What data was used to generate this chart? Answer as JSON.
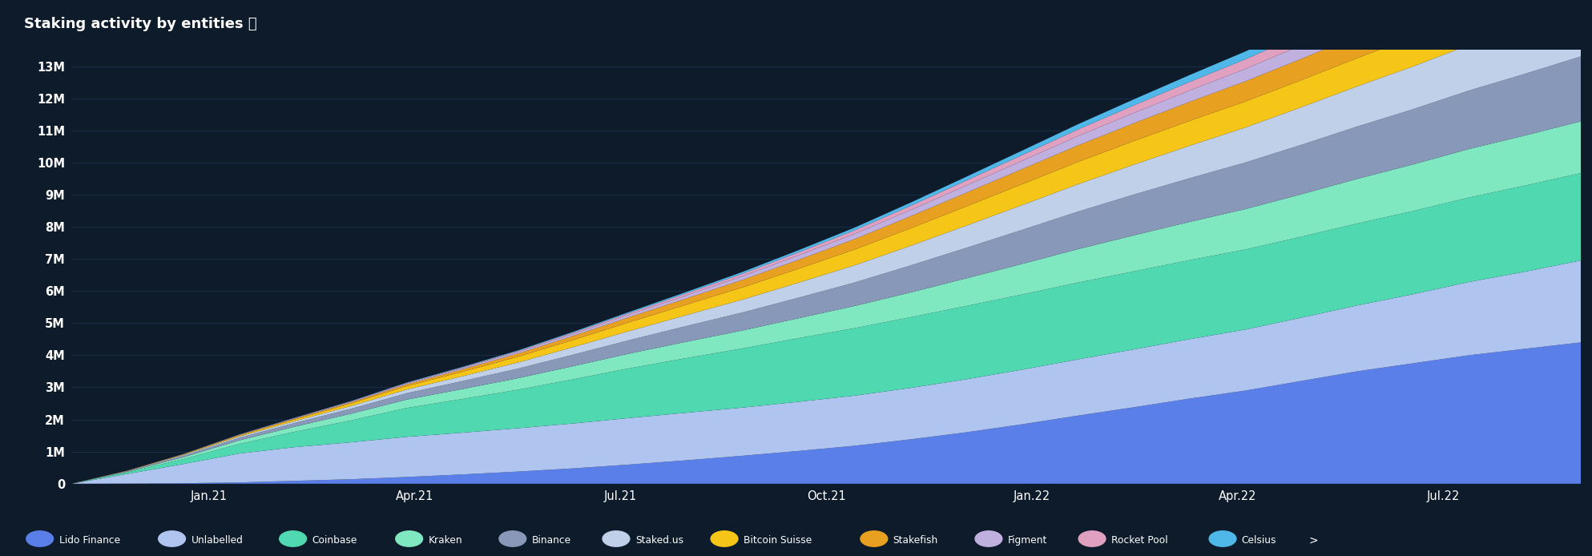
{
  "title": "Staking activity by entities ⓘ",
  "background_color": "#0d1b2a",
  "plot_bg_color": "#0d1b2a",
  "grid_color": "#1e3250",
  "text_color": "#ffffff",
  "y_max": 13500000,
  "x_ticks": [
    "Jan.21",
    "Apr.21",
    "Jul.21",
    "Oct.21",
    "Jan.22",
    "Apr.22",
    "Jul.22"
  ],
  "y_ticks": [
    "0",
    "1M",
    "2M",
    "3M",
    "4M",
    "5M",
    "6M",
    "7M",
    "8M",
    "9M",
    "10M",
    "11M",
    "12M",
    "13M"
  ],
  "y_tick_values": [
    0,
    1000000,
    2000000,
    3000000,
    4000000,
    5000000,
    6000000,
    7000000,
    8000000,
    9000000,
    10000000,
    11000000,
    12000000,
    13000000
  ],
  "layers": [
    {
      "name": "Lido Finance",
      "color": "#5b7fe8",
      "values": [
        0,
        5000,
        15000,
        40000,
        90000,
        140000,
        210000,
        290000,
        380000,
        480000,
        600000,
        730000,
        870000,
        1020000,
        1180000,
        1380000,
        1600000,
        1850000,
        2120000,
        2380000,
        2650000,
        2900000,
        3200000,
        3500000,
        3750000,
        4000000,
        4200000,
        4400000
      ]
    },
    {
      "name": "Unlabelled",
      "color": "#b0c4f0",
      "values": [
        0,
        300000,
        600000,
        900000,
        1050000,
        1150000,
        1250000,
        1300000,
        1350000,
        1400000,
        1450000,
        1480000,
        1500000,
        1530000,
        1560000,
        1600000,
        1650000,
        1700000,
        1750000,
        1800000,
        1850000,
        1900000,
        1970000,
        2050000,
        2150000,
        2280000,
        2400000,
        2550000
      ]
    },
    {
      "name": "Coinbase",
      "color": "#50d8b0",
      "values": [
        0,
        50000,
        150000,
        300000,
        480000,
        680000,
        900000,
        1050000,
        1200000,
        1380000,
        1550000,
        1700000,
        1840000,
        1980000,
        2100000,
        2200000,
        2280000,
        2340000,
        2390000,
        2430000,
        2460000,
        2490000,
        2520000,
        2550000,
        2590000,
        2630000,
        2680000,
        2720000
      ]
    },
    {
      "name": "Kraken",
      "color": "#80e8c0",
      "values": [
        0,
        20000,
        60000,
        110000,
        160000,
        210000,
        260000,
        310000,
        360000,
        410000,
        460000,
        510000,
        560000,
        620000,
        690000,
        770000,
        860000,
        950000,
        1040000,
        1120000,
        1190000,
        1260000,
        1320000,
        1390000,
        1450000,
        1510000,
        1560000,
        1610000
      ]
    },
    {
      "name": "Binance",
      "color": "#8898b8",
      "values": [
        0,
        15000,
        45000,
        80000,
        115000,
        155000,
        200000,
        250000,
        300000,
        360000,
        420000,
        490000,
        560000,
        640000,
        730000,
        840000,
        950000,
        1060000,
        1170000,
        1270000,
        1360000,
        1450000,
        1540000,
        1630000,
        1720000,
        1820000,
        1920000,
        2020000
      ]
    },
    {
      "name": "Staked.us",
      "color": "#c0d0e8",
      "values": [
        0,
        8000,
        22000,
        40000,
        60000,
        85000,
        115000,
        150000,
        190000,
        235000,
        285000,
        340000,
        400000,
        465000,
        535000,
        610000,
        690000,
        770000,
        850000,
        930000,
        1010000,
        1090000,
        1170000,
        1250000,
        1330000,
        1420000,
        1510000,
        1600000
      ]
    },
    {
      "name": "Bitcoin Suisse",
      "color": "#f5c518",
      "values": [
        0,
        5000,
        15000,
        30000,
        50000,
        75000,
        105000,
        140000,
        180000,
        225000,
        275000,
        325000,
        380000,
        435000,
        490000,
        545000,
        600000,
        650000,
        695000,
        735000,
        775000,
        810000,
        845000,
        880000,
        915000,
        950000,
        985000,
        1020000
      ]
    },
    {
      "name": "Stakefish",
      "color": "#e8a020",
      "values": [
        0,
        3000,
        8000,
        15000,
        25000,
        38000,
        55000,
        75000,
        100000,
        128000,
        160000,
        195000,
        235000,
        278000,
        325000,
        375000,
        425000,
        472000,
        515000,
        555000,
        592000,
        628000,
        662000,
        698000,
        735000,
        775000,
        818000,
        862000
      ]
    },
    {
      "name": "Figment",
      "color": "#c0b0e0",
      "values": [
        0,
        2000,
        5000,
        9000,
        14000,
        20000,
        28000,
        37000,
        48000,
        61000,
        77000,
        95000,
        115000,
        138000,
        163000,
        192000,
        223000,
        255000,
        288000,
        320000,
        353000,
        386000,
        420000,
        455000,
        492000,
        532000,
        574000,
        618000
      ]
    },
    {
      "name": "Rocket Pool",
      "color": "#e0a0c0",
      "values": [
        0,
        1000,
        3000,
        6000,
        9000,
        13000,
        18000,
        24000,
        31000,
        40000,
        51000,
        63000,
        77000,
        93000,
        111000,
        132000,
        155000,
        180000,
        207000,
        236000,
        267000,
        300000,
        336000,
        375000,
        417000,
        462000,
        510000,
        560000
      ]
    },
    {
      "name": "Celsius",
      "color": "#50b8e8",
      "values": [
        0,
        500,
        1500,
        3000,
        5000,
        7500,
        11000,
        15000,
        20000,
        26000,
        34000,
        43000,
        54000,
        67000,
        82000,
        99000,
        118000,
        139000,
        162000,
        187000,
        214000,
        243000,
        274000,
        307000,
        342000,
        380000,
        420000,
        462000
      ]
    }
  ],
  "legend": [
    {
      "name": "Lido Finance",
      "color": "#5b7fe8"
    },
    {
      "name": "Unlabelled",
      "color": "#b0c4f0"
    },
    {
      "name": "Coinbase",
      "color": "#50d8b0"
    },
    {
      "name": "Kraken",
      "color": "#80e8c0"
    },
    {
      "name": "Binance",
      "color": "#8898b8"
    },
    {
      "name": "Staked.us",
      "color": "#c0d0e8"
    },
    {
      "name": "Bitcoin Suisse",
      "color": "#f5c518"
    },
    {
      "name": "Stakefish",
      "color": "#e8a020"
    },
    {
      "name": "Figment",
      "color": "#c0b0e0"
    },
    {
      "name": "Rocket Pool",
      "color": "#e0a0c0"
    },
    {
      "name": "Celsius",
      "color": "#50b8e8"
    }
  ]
}
